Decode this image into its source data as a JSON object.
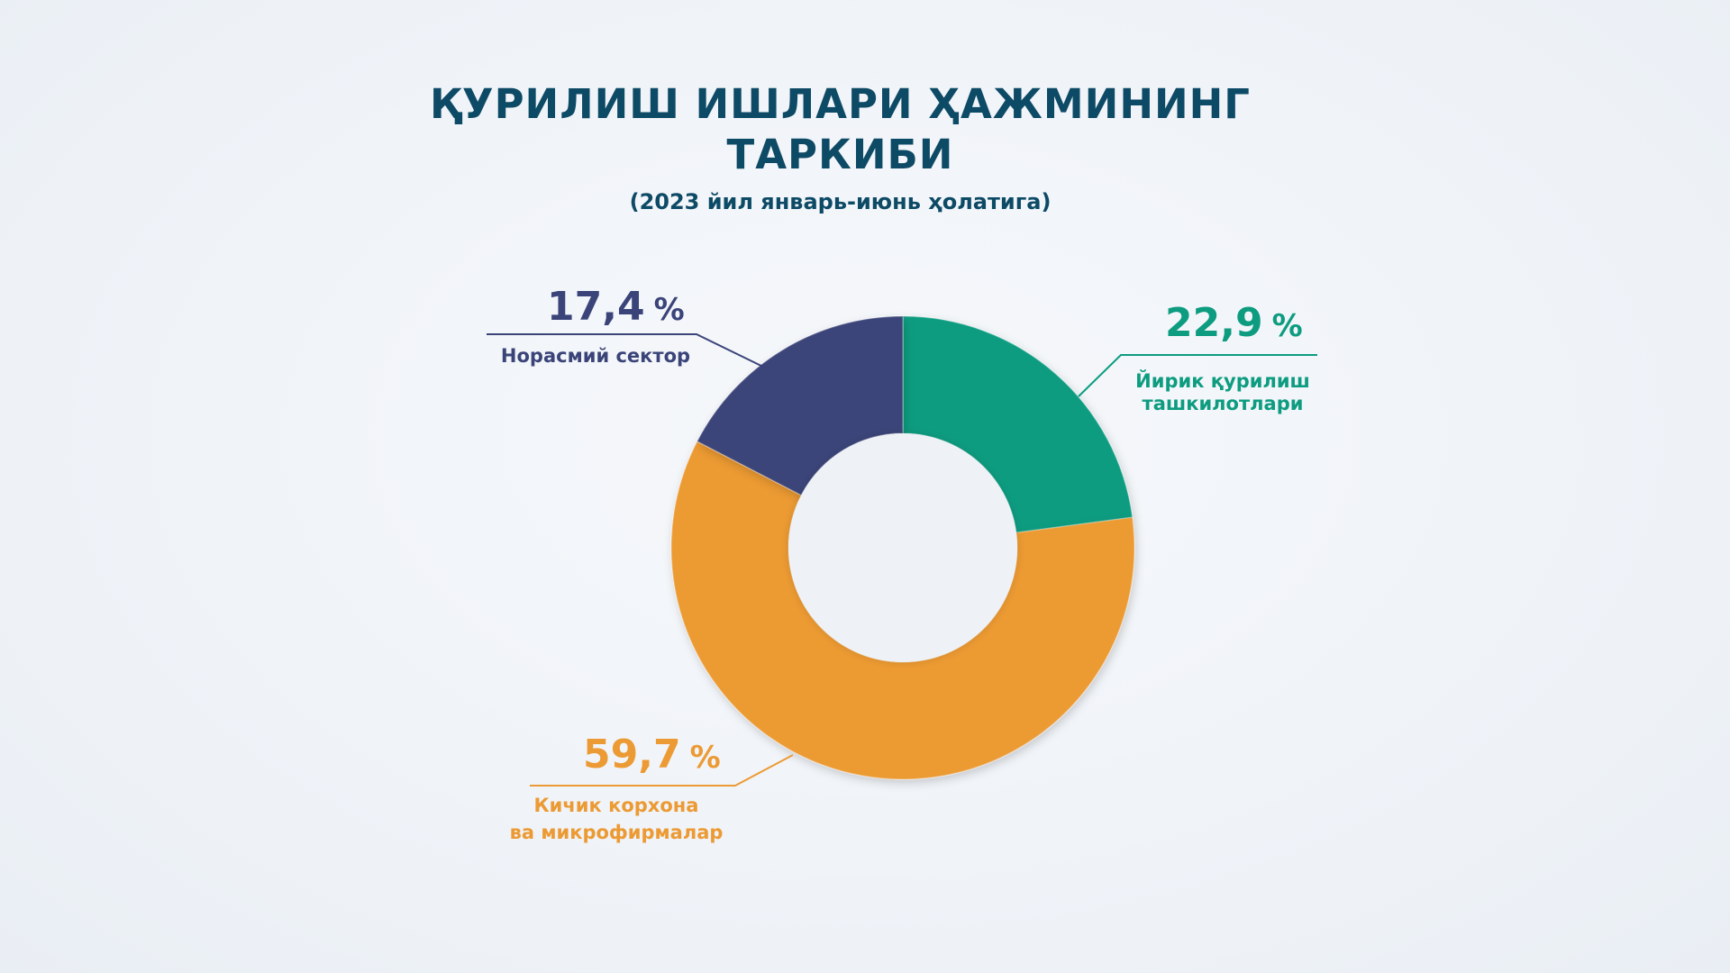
{
  "title_line1": "ҚУРИЛИШ ИШЛАРИ ҲАЖМИНИНГ",
  "title_line2": "ТАРКИБИ",
  "subtitle": "(2023 йил январь-июнь ҳолатига)",
  "chart_data": {
    "type": "pie",
    "donut": true,
    "title": "ҚУРИЛИШ ИШЛАРИ ҲАЖМИНИНГ ТАРКИБИ",
    "subtitle": "(2023 йил январь-июнь ҳолатига)",
    "unit": "%",
    "slices": [
      {
        "label_lines": [
          "Йирик қурилиш",
          "ташкилотлари"
        ],
        "value": 22.9,
        "value_text": "22,9",
        "color": "#0d9c80"
      },
      {
        "label_lines": [
          "Кичик корхона",
          "ва микрофирмалар"
        ],
        "value": 59.7,
        "value_text": "59,7",
        "color": "#ec9a33"
      },
      {
        "label_lines": [
          "Норасмий сектор"
        ],
        "value": 17.4,
        "value_text": "17,4",
        "color": "#3b4479"
      }
    ]
  }
}
